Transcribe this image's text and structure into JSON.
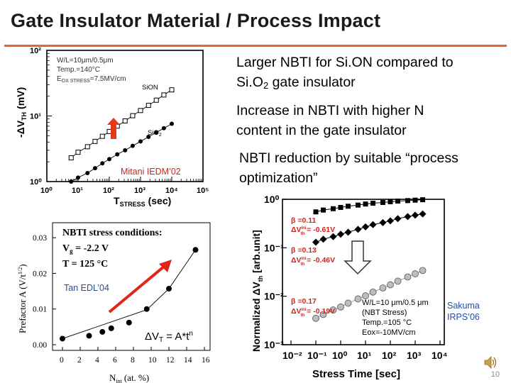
{
  "slide": {
    "title": "Gate Insulator Material / Process Impact",
    "bullets": [
      {
        "line1": "Larger NBTI for Si.ON compared to",
        "line2a": "Si.O",
        "line2sub": "2",
        "line2b": " gate insulator"
      },
      {
        "line1": "Increase in NBTI with higher N",
        "line2": "content in the gate insulator"
      },
      {
        "line1": "NBTI reduction by suitable “process",
        "line2": "optimization”"
      }
    ],
    "page_number": "10",
    "speaker_icon": "speaker-icon",
    "accent_color": "#e8622b"
  },
  "chart_data": [
    {
      "type": "scatter",
      "xscale": "log",
      "yscale": "log",
      "xlim": [
        1,
        100000
      ],
      "ylim": [
        1,
        100
      ],
      "xticks": [
        "10⁰",
        "10¹",
        "10²",
        "10³",
        "10⁴",
        "10⁵"
      ],
      "yticks": [
        "10⁰",
        "10¹",
        "10²"
      ],
      "xlabel": "T",
      "xlabel_sub": "STRESS",
      "xlabel_unit": "(sec)",
      "ylabel": "-ΔV",
      "ylabel_sub": "TH",
      "ylabel_unit": "(mV)",
      "annotations": {
        "line1": "W/L=10μm/0.5μm",
        "line2": "Temp.=140°C",
        "line3": "E",
        "line3_sub": "OX STRESS",
        "line3_b": "=7.5MV/cm"
      },
      "citation": "Mitani IEDM’02",
      "series": [
        {
          "name": "SiON",
          "marker": "open-square",
          "x": [
            6,
            10,
            20,
            35,
            60,
            100,
            180,
            320,
            560,
            1000,
            1800,
            3200,
            5600,
            10000
          ],
          "y": [
            2.3,
            2.8,
            3.4,
            4.1,
            4.9,
            5.8,
            7.0,
            8.4,
            10.1,
            12.1,
            14.5,
            17.4,
            20.9,
            25.0
          ]
        },
        {
          "name": "SiO",
          "name_sub": "2",
          "marker": "filled-circle",
          "x": [
            6,
            10,
            20,
            35,
            60,
            100,
            180,
            320,
            560,
            1000,
            1800,
            3200,
            5600,
            10000
          ],
          "y": [
            1.0,
            1.15,
            1.35,
            1.6,
            1.9,
            2.2,
            2.6,
            3.0,
            3.5,
            4.1,
            4.8,
            5.6,
            6.5,
            7.6
          ]
        }
      ]
    },
    {
      "type": "scatter",
      "xlim": [
        0,
        16
      ],
      "ylim": [
        0,
        0.035
      ],
      "xticks": [
        "0",
        "2",
        "4",
        "6",
        "8",
        "10",
        "12",
        "14",
        "16"
      ],
      "yticks": [
        "0.00",
        "0.01",
        "0.02",
        "0.03"
      ],
      "xlabel": "N",
      "xlabel_sub": "int",
      "xlabel_unit": "(at. %)",
      "ylabel": "Prefactor A (V/t",
      "ylabel_sup": "1/2",
      "ylabel_end": ")",
      "annotations": {
        "heading": "NBTI stress conditions:",
        "vg": "V",
        "vg_sub": "g",
        "vg_val": " = -2.2 V",
        "temp": "T = 125 °C",
        "formula_a": "ΔV",
        "formula_sub": "T",
        "formula_b": " = A*t",
        "formula_sup": "n"
      },
      "citation": "Tan EDL’04",
      "series": [
        {
          "name": "",
          "marker": "filled-circle",
          "x": [
            0,
            3,
            4.5,
            5.5,
            7.5,
            9.5,
            12,
            15
          ],
          "y": [
            0.0017,
            0.0025,
            0.0036,
            0.0046,
            0.0062,
            0.01,
            0.0157,
            0.0266
          ]
        }
      ],
      "fit_line": {
        "x": [
          0,
          9.5,
          12,
          15
        ],
        "y": [
          0.0017,
          0.0098,
          0.0157,
          0.0266
        ]
      }
    },
    {
      "type": "line",
      "xscale": "log",
      "yscale": "log",
      "xlim": [
        0.01,
        10000
      ],
      "ylim": [
        0.001,
        1
      ],
      "xticks": [
        "10⁻²",
        "10⁻¹",
        "10⁰",
        "10¹",
        "10²",
        "10³",
        "10⁴"
      ],
      "yticks": [
        "10⁰",
        "10⁻¹",
        "10⁻²",
        "10⁻³"
      ],
      "xlabel": "Stress Time [sec]",
      "ylabel": "Normalized  ΔV",
      "ylabel_sub": "th",
      "ylabel_unit": " [arb.unit]",
      "legend_texts": [
        {
          "beta": "β =0.11",
          "dv": "ΔV",
          "dv_sup": "ini",
          "dv_sub": "th",
          "dv_val": " = -0.61V"
        },
        {
          "beta": "β =0.13",
          "dv": "ΔV",
          "dv_sup": "ini",
          "dv_sub": "th",
          "dv_val": " = -0.46V"
        },
        {
          "beta": "β =0.17",
          "dv": "ΔV",
          "dv_sup": "ini",
          "dv_sub": "th",
          "dv_val": " = -0.19V"
        }
      ],
      "conditions": {
        "line1": "W/L=10 μm/0.5 μm",
        "line2": "(NBT Stress)",
        "line3": "Temp.=105 °C",
        "line4": "Eox=-10MV/cm"
      },
      "citation_line1": "Sakuma",
      "citation_line2": "IRPS’06",
      "series": [
        {
          "name": "",
          "marker": "filled-square",
          "color": "#000000",
          "x": [
            0.1,
            0.2,
            0.5,
            1,
            2,
            5,
            10,
            20,
            50,
            100,
            200,
            500,
            1000,
            2000
          ],
          "y": [
            0.55,
            0.6,
            0.64,
            0.68,
            0.72,
            0.76,
            0.8,
            0.83,
            0.86,
            0.89,
            0.92,
            0.94,
            0.96,
            0.98
          ]
        },
        {
          "name": "",
          "marker": "filled-diamond",
          "color": "#000000",
          "x": [
            0.1,
            0.2,
            0.5,
            1,
            2,
            5,
            10,
            20,
            50,
            100,
            200,
            500,
            1000,
            2000
          ],
          "y": [
            0.13,
            0.15,
            0.17,
            0.19,
            0.21,
            0.24,
            0.27,
            0.3,
            0.33,
            0.36,
            0.4,
            0.44,
            0.47,
            0.5
          ]
        },
        {
          "name": "",
          "marker": "gray-circle",
          "color": "#999999",
          "x": [
            0.1,
            0.2,
            0.5,
            1,
            2,
            5,
            10,
            20,
            50,
            100,
            200,
            500,
            1000,
            2000
          ],
          "y": [
            0.0035,
            0.0042,
            0.0052,
            0.006,
            0.0072,
            0.0088,
            0.0102,
            0.0122,
            0.0148,
            0.0172,
            0.0205,
            0.025,
            0.029,
            0.034
          ]
        }
      ]
    }
  ]
}
